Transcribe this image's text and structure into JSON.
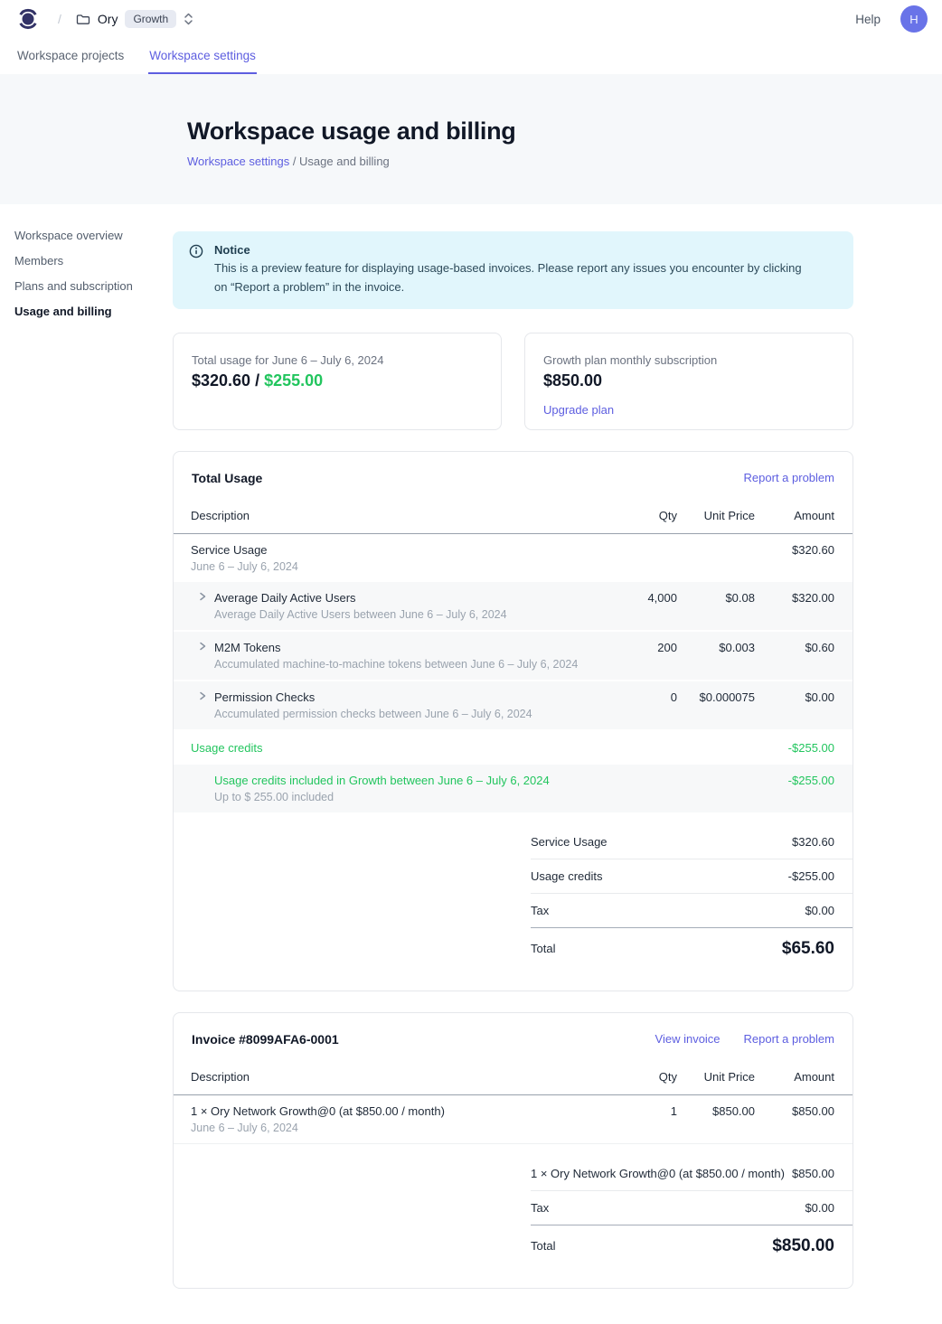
{
  "colors": {
    "accent": "#5d5ee0",
    "green": "#22c55e",
    "notice_bg": "#e1f6fc",
    "notice_text": "#1f3d4f",
    "brand_logo": "#333367",
    "avatar_bg": "#6973e8"
  },
  "topbar": {
    "separator": "/",
    "workspace_name": "Ory",
    "plan_badge": "Growth",
    "help_label": "Help",
    "avatar_initial": "H"
  },
  "tabs": [
    {
      "label": "Workspace projects",
      "active": false
    },
    {
      "label": "Workspace settings",
      "active": true
    }
  ],
  "page_header": {
    "title": "Workspace usage and billing",
    "breadcrumb_link": "Workspace settings",
    "breadcrumb_rest": " / Usage and billing"
  },
  "sidebar": {
    "items": [
      {
        "label": "Workspace overview",
        "active": false
      },
      {
        "label": "Members",
        "active": false
      },
      {
        "label": "Plans and subscription",
        "active": false
      },
      {
        "label": "Usage and billing",
        "active": true
      }
    ]
  },
  "notice": {
    "title": "Notice",
    "body": "This is a preview feature for displaying usage-based invoices. Please report any issues you encounter by clicking on “Report a problem” in the invoice."
  },
  "usage_card": {
    "label": "Total usage for June 6 – July 6, 2024",
    "amount_used": "$320.60",
    "separator": " / ",
    "amount_credit": "$255.00"
  },
  "plan_card": {
    "label": "Growth plan monthly subscription",
    "amount": "$850.00",
    "upgrade_link": "Upgrade plan"
  },
  "total_usage": {
    "title": "Total Usage",
    "report_link": "Report a problem",
    "columns": [
      "Description",
      "Qty",
      "Unit Price",
      "Amount"
    ],
    "rows": [
      {
        "title": "Service Usage",
        "subtitle": "June 6 – July 6, 2024",
        "qty": "",
        "unit_price": "",
        "amount": "$320.60",
        "shaded": false,
        "expandable": false,
        "credit": false,
        "indent": false
      },
      {
        "title": "Average Daily Active Users",
        "subtitle": "Average Daily Active Users between June 6 – July 6, 2024",
        "qty": "4,000",
        "unit_price": "$0.08",
        "amount": "$320.00",
        "shaded": true,
        "expandable": true,
        "credit": false,
        "indent": false
      },
      {
        "title": "M2M Tokens",
        "subtitle": "Accumulated machine-to-machine tokens between June 6 – July 6, 2024",
        "qty": "200",
        "unit_price": "$0.003",
        "amount": "$0.60",
        "shaded": true,
        "expandable": true,
        "credit": false,
        "indent": false
      },
      {
        "title": "Permission Checks",
        "subtitle": "Accumulated permission checks between June 6 – July 6, 2024",
        "qty": "0",
        "unit_price": "$0.000075",
        "amount": "$0.00",
        "shaded": true,
        "expandable": true,
        "credit": false,
        "indent": false
      },
      {
        "title": "Usage credits",
        "subtitle": "",
        "qty": "",
        "unit_price": "",
        "amount": "-$255.00",
        "shaded": false,
        "expandable": false,
        "credit": true,
        "indent": false
      },
      {
        "title": "Usage credits included in Growth between June 6 – July 6, 2024",
        "subtitle": "Up to $ 255.00 included",
        "qty": "",
        "unit_price": "",
        "amount": "-$255.00",
        "shaded": true,
        "expandable": false,
        "credit": true,
        "indent": true
      }
    ],
    "summary": [
      {
        "label": "Service Usage",
        "value": "$320.60",
        "dark_divider": false
      },
      {
        "label": "Usage credits",
        "value": "-$255.00",
        "dark_divider": false
      },
      {
        "label": "Tax",
        "value": "$0.00",
        "dark_divider": true
      }
    ],
    "total": {
      "label": "Total",
      "value": "$65.60"
    }
  },
  "invoice": {
    "title": "Invoice #8099AFA6-0001",
    "view_link": "View invoice",
    "report_link": "Report a problem",
    "columns": [
      "Description",
      "Qty",
      "Unit Price",
      "Amount"
    ],
    "rows": [
      {
        "title": "1 × Ory Network Growth@0 (at $850.00 / month)",
        "subtitle": "June 6 – July 6, 2024",
        "qty": "1",
        "unit_price": "$850.00",
        "amount": "$850.00",
        "shaded": false,
        "expandable": false,
        "credit": false,
        "indent": false
      }
    ],
    "summary": [
      {
        "label": "1 × Ory Network Growth@0 (at $850.00 / month)",
        "value": "$850.00",
        "dark_divider": false
      },
      {
        "label": "Tax",
        "value": "$0.00",
        "dark_divider": true
      }
    ],
    "total": {
      "label": "Total",
      "value": "$850.00"
    }
  }
}
